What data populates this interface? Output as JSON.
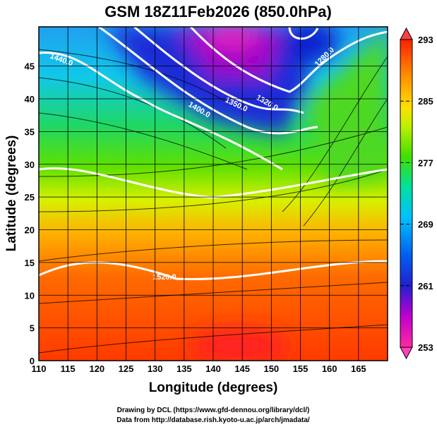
{
  "title": "GSM 18Z11Feb2026 (850.0hPa)",
  "chart_data": {
    "type": "heatmap",
    "title": "GSM 18Z11Feb2026 (850.0hPa)",
    "xlabel": "Longitude (degrees)",
    "ylabel": "Latitude  (degrees)",
    "xlim": [
      110,
      170
    ],
    "ylim": [
      0,
      51
    ],
    "xticks": [
      "110",
      "115",
      "120",
      "125",
      "130",
      "135",
      "140",
      "145",
      "150",
      "155",
      "160",
      "165"
    ],
    "yticks": [
      "0",
      "5",
      "10",
      "15",
      "20",
      "25",
      "30",
      "35",
      "40",
      "45"
    ],
    "grid": true,
    "colorbar": {
      "range": [
        253,
        293
      ],
      "ticks": [
        "293",
        "285",
        "277",
        "269",
        "261",
        "253"
      ],
      "colors": [
        "#ff2a7f",
        "#d400d4",
        "#2020e0",
        "#00a0ff",
        "#00e0c0",
        "#40e000",
        "#c0f000",
        "#ffe000",
        "#ff9000",
        "#ff3000",
        "#e00000"
      ],
      "extend": "both"
    },
    "contour_labels": [
      "1440.0",
      "1400.0",
      "1350.0",
      "1320.0",
      "1280.0",
      "1520.0"
    ],
    "fields": [
      "temperature (shaded)",
      "geopotential height (contours)",
      "wind (streamlines)"
    ]
  },
  "credits": {
    "line1": "Drawing by DCL (https://www.gfd-dennou.org/library/dcl/)",
    "line2": "Data from http://database.rish.kyoto-u.ac.jp/arch/jmadata/"
  }
}
